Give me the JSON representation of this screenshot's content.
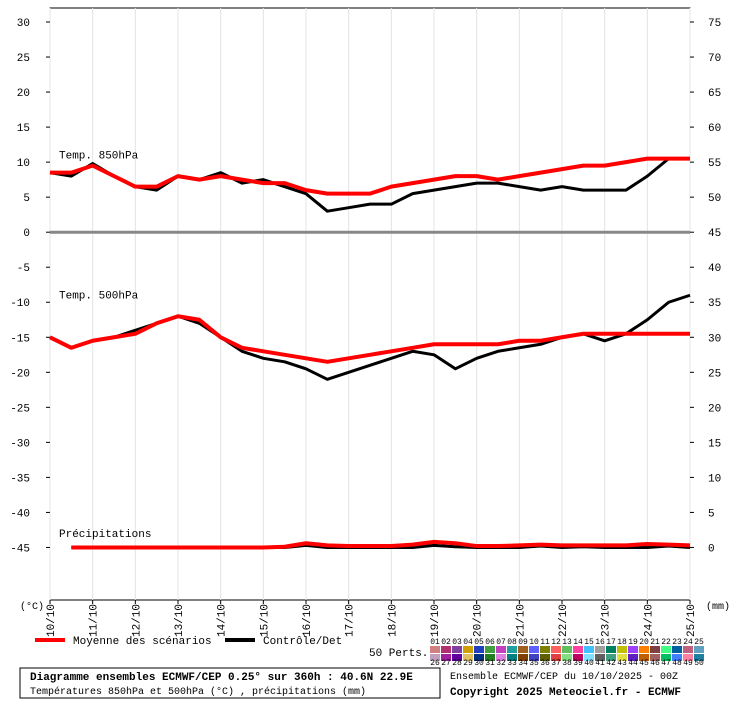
{
  "chart_data": {
    "type": "line",
    "x": [
      0,
      0.5,
      1,
      1.5,
      2,
      2.5,
      3,
      3.5,
      4,
      4.5,
      5,
      5.5,
      6,
      6.5,
      7,
      7.5,
      8,
      8.5,
      9,
      9.5,
      10,
      10.5,
      11,
      11.5,
      12,
      12.5,
      13,
      13.5,
      14,
      14.5,
      15
    ],
    "xlim": [
      0,
      15
    ],
    "xticks": [
      {
        "value": 0,
        "label": "10/10"
      },
      {
        "value": 1,
        "label": "11/10"
      },
      {
        "value": 2,
        "label": "12/10"
      },
      {
        "value": 3,
        "label": "13/10"
      },
      {
        "value": 4,
        "label": "14/10"
      },
      {
        "value": 5,
        "label": "15/10"
      },
      {
        "value": 6,
        "label": "16/10"
      },
      {
        "value": 7,
        "label": "17/10"
      },
      {
        "value": 8,
        "label": "18/10"
      },
      {
        "value": 9,
        "label": "19/10"
      },
      {
        "value": 10,
        "label": "20/10"
      },
      {
        "value": 11,
        "label": "21/10"
      },
      {
        "value": 12,
        "label": "22/10"
      },
      {
        "value": 13,
        "label": "23/10"
      },
      {
        "value": 14,
        "label": "24/10"
      },
      {
        "value": 15,
        "label": "25/10"
      }
    ],
    "ylim": [
      -52.5,
      32
    ],
    "yticks": [
      30,
      25,
      20,
      15,
      10,
      5,
      0,
      -5,
      -10,
      -15,
      -20,
      -25,
      -30,
      -35,
      -40,
      -45
    ],
    "y2lim": [
      -7.5,
      77
    ],
    "y2ticks": [
      75,
      70,
      65,
      60,
      55,
      50,
      45,
      40,
      35,
      30,
      25,
      20,
      15,
      10,
      5,
      0
    ],
    "ylabel": "(°C)",
    "y2label": "(mm)",
    "legend": [
      {
        "name": "Moyenne des scénarios",
        "color": "#ff0000"
      },
      {
        "name": "Contrôle/Det",
        "color": "#000000"
      }
    ],
    "panels": [
      {
        "label": "Temp. 850hPa",
        "axis": "y",
        "mean": [
          8.5,
          8.5,
          9.5,
          8,
          6.5,
          6.5,
          8,
          7.5,
          8,
          7.5,
          7,
          7,
          6,
          5.5,
          5.5,
          5.5,
          6.5,
          7,
          7.5,
          8,
          8,
          7.5,
          8,
          8.5,
          9,
          9.5,
          9.5,
          10,
          10.5,
          10.5,
          10.5
        ],
        "control": [
          8.5,
          8,
          9.8,
          8,
          6.5,
          6,
          8,
          7.5,
          8.5,
          7,
          7.5,
          6.5,
          5.5,
          3,
          3.5,
          4,
          4,
          5.5,
          6,
          6.5,
          7,
          7,
          6.5,
          6,
          6.5,
          6,
          6,
          6,
          8,
          10.5,
          10.5
        ]
      },
      {
        "label": "Temp. 500hPa",
        "axis": "y",
        "mean": [
          -15,
          -16.5,
          -15.5,
          -15,
          -14.5,
          -13,
          -12,
          -12.5,
          -15,
          -16.5,
          -17,
          -17.5,
          -18,
          -18.5,
          -18,
          -17.5,
          -17,
          -16.5,
          -16,
          -16,
          -16,
          -16,
          -15.5,
          -15.5,
          -15,
          -14.5,
          -14.5,
          -14.5,
          -14.5,
          -14.5,
          -14.5
        ],
        "control": [
          -15,
          -16.5,
          -15.5,
          -15,
          -14,
          -13,
          -12,
          -13,
          -15,
          -17,
          -18,
          -18.5,
          -19.5,
          -21,
          -20,
          -19,
          -18,
          -17,
          -17.5,
          -19.5,
          -18,
          -17,
          -16.5,
          -16,
          -15,
          -14.5,
          -15.5,
          -14.5,
          -12.5,
          -10,
          -9
        ]
      },
      {
        "label": "Précipitations",
        "axis": "y2",
        "mean": [
          null,
          0,
          0,
          0,
          0,
          0,
          0,
          0,
          0,
          0,
          0,
          0.1,
          0.6,
          0.3,
          0.2,
          0.2,
          0.2,
          0.4,
          0.8,
          0.6,
          0.2,
          0.2,
          0.3,
          0.4,
          0.3,
          0.3,
          0.3,
          0.3,
          0.5,
          0.4,
          0.3
        ],
        "control": [
          null,
          0,
          0,
          0,
          0,
          0,
          0,
          0,
          0,
          0,
          0,
          0,
          0.3,
          0,
          0,
          0,
          0,
          0,
          0.3,
          0.1,
          0,
          0,
          0,
          0.2,
          0,
          0.1,
          0,
          0,
          0,
          0.2,
          0
        ]
      }
    ],
    "perturbations": {
      "label": "50 Perts.",
      "members": [
        {
          "name": "01",
          "color": "#d08080"
        },
        {
          "name": "02",
          "color": "#b03070"
        },
        {
          "name": "03",
          "color": "#8040a0"
        },
        {
          "name": "04",
          "color": "#d0a000"
        },
        {
          "name": "05",
          "color": "#2040c0"
        },
        {
          "name": "06",
          "color": "#40a040"
        },
        {
          "name": "07",
          "color": "#c040c0"
        },
        {
          "name": "08",
          "color": "#20a0a0"
        },
        {
          "name": "09",
          "color": "#a06020"
        },
        {
          "name": "10",
          "color": "#6060ff"
        },
        {
          "name": "11",
          "color": "#808000"
        },
        {
          "name": "12",
          "color": "#ff6060"
        },
        {
          "name": "13",
          "color": "#60c060"
        },
        {
          "name": "14",
          "color": "#ff40a0"
        },
        {
          "name": "15",
          "color": "#40c0ff"
        },
        {
          "name": "16",
          "color": "#a0a0a0"
        },
        {
          "name": "17",
          "color": "#008060"
        },
        {
          "name": "18",
          "color": "#c0c000"
        },
        {
          "name": "19",
          "color": "#a040ff"
        },
        {
          "name": "20",
          "color": "#ff8000"
        },
        {
          "name": "21",
          "color": "#804040"
        },
        {
          "name": "22",
          "color": "#40ff80"
        },
        {
          "name": "23",
          "color": "#0060a0"
        },
        {
          "name": "24",
          "color": "#c06080"
        },
        {
          "name": "25",
          "color": "#60a0c0"
        },
        {
          "name": "26",
          "color": "#c0a0c0"
        },
        {
          "name": "27",
          "color": "#a020a0"
        },
        {
          "name": "28",
          "color": "#6000a0"
        },
        {
          "name": "29",
          "color": "#e0c060"
        },
        {
          "name": "30",
          "color": "#003080"
        },
        {
          "name": "31",
          "color": "#208020"
        },
        {
          "name": "32",
          "color": "#e080e0"
        },
        {
          "name": "33",
          "color": "#008080"
        },
        {
          "name": "34",
          "color": "#804000"
        },
        {
          "name": "35",
          "color": "#4040c0"
        },
        {
          "name": "36",
          "color": "#606000"
        },
        {
          "name": "37",
          "color": "#e04040"
        },
        {
          "name": "38",
          "color": "#80e080"
        },
        {
          "name": "39",
          "color": "#c00060"
        },
        {
          "name": "40",
          "color": "#80e0ff"
        },
        {
          "name": "41",
          "color": "#606060"
        },
        {
          "name": "42",
          "color": "#40a080"
        },
        {
          "name": "43",
          "color": "#e0e040"
        },
        {
          "name": "44",
          "color": "#6020c0"
        },
        {
          "name": "45",
          "color": "#c06000"
        },
        {
          "name": "46",
          "color": "#a06060"
        },
        {
          "name": "47",
          "color": "#00c060"
        },
        {
          "name": "48",
          "color": "#4080ff"
        },
        {
          "name": "49",
          "color": "#ff80a0"
        },
        {
          "name": "50",
          "color": "#2080a0"
        }
      ]
    },
    "footer": {
      "title": "Diagramme ensembles ECMWF/CEP 0.25° sur 360h : 40.6N 22.9E",
      "subtitle": "Températures 850hPa et 500hPa (°C) , précipitations (mm)",
      "run": "Ensemble ECMWF/CEP du 10/10/2025 - 00Z",
      "copyright": "Copyright 2025 Meteociel.fr - ECMWF"
    }
  }
}
